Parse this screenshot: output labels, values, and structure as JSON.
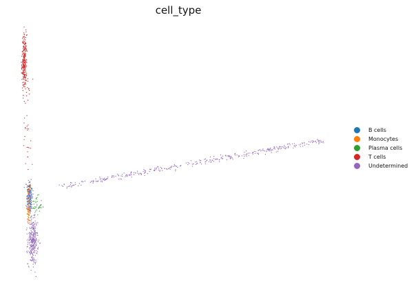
{
  "chart_data": {
    "type": "scatter",
    "title": "cell_type",
    "xlabel": "",
    "ylabel": "",
    "grid": false,
    "axes_visible": false,
    "legend_position": "right",
    "x_range": [
      0,
      1
    ],
    "y_range": [
      0,
      1
    ],
    "series": [
      {
        "name": "B cells",
        "color": "#1f77b4",
        "clusters": [
          {
            "x": 0.03,
            "y": 0.27,
            "sx": 0.005,
            "sy": 0.03,
            "points": 80
          },
          {
            "x": 0.028,
            "y": 0.31,
            "sx": 0.004,
            "sy": 0.02,
            "points": 45
          }
        ]
      },
      {
        "name": "Monocytes",
        "color": "#ff7f0e",
        "clusters": [
          {
            "x": 0.026,
            "y": 0.22,
            "sx": 0.003,
            "sy": 0.03,
            "points": 60
          },
          {
            "x": 0.028,
            "y": 0.3,
            "sx": 0.003,
            "sy": 0.02,
            "points": 25
          }
        ]
      },
      {
        "name": "Plasma cells",
        "color": "#2ca02c",
        "clusters": [
          {
            "x": 0.05,
            "y": 0.24,
            "sx": 0.01,
            "sy": 0.02,
            "points": 45
          }
        ]
      },
      {
        "name": "T cells",
        "color": "#d62728",
        "clusters": [
          {
            "x": 0.012,
            "y": 0.85,
            "sx": 0.004,
            "sy": 0.06,
            "points": 260
          },
          {
            "x": 0.022,
            "y": 0.62,
            "sx": 0.006,
            "sy": 0.12,
            "points": 35
          }
        ]
      },
      {
        "name": "Undetermined",
        "color": "#9467bd",
        "clusters": [
          {
            "x": 0.04,
            "y": 0.09,
            "sx": 0.008,
            "sy": 0.05,
            "points": 300
          },
          {
            "x": 0.03,
            "y": 0.28,
            "sx": 0.005,
            "sy": 0.04,
            "points": 80
          }
        ],
        "trail": {
          "from": [
            0.12,
            0.32
          ],
          "to": [
            1.0,
            0.52
          ],
          "points": 360
        }
      }
    ]
  }
}
